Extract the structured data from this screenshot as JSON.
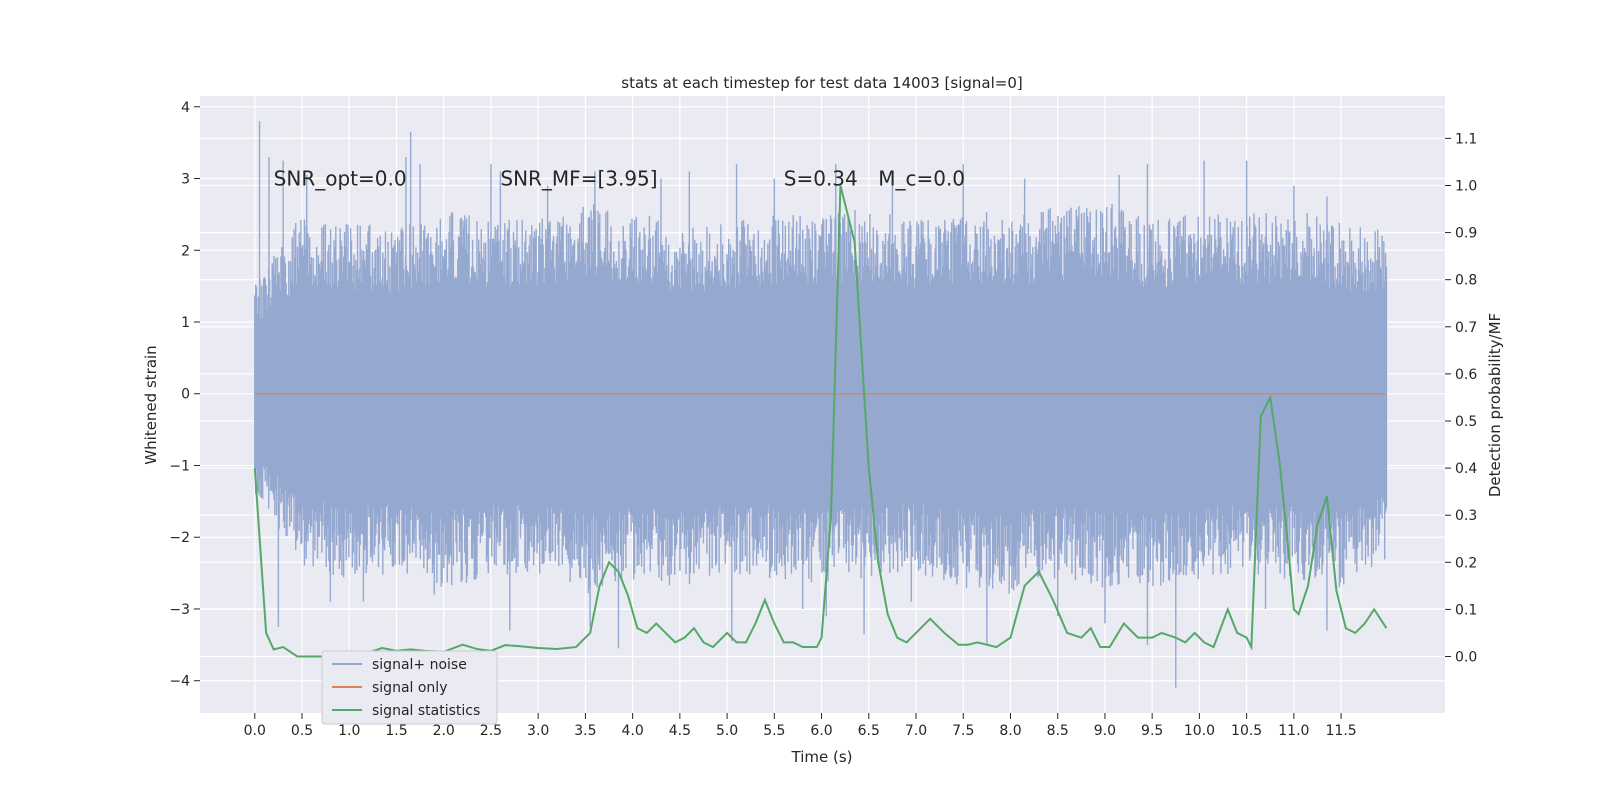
{
  "chart_data": {
    "type": "line",
    "title": "stats at each timestep for test data 14003 [signal=0]",
    "xlabel": "Time (s)",
    "ylabel": "Whitened strain",
    "y2label": "Detection probability/MF",
    "xlim": [
      -0.58,
      12.6
    ],
    "ylim": [
      -4.45,
      4.15
    ],
    "y2lim": [
      -0.12,
      1.19
    ],
    "xticks": [
      0.0,
      0.5,
      1.0,
      1.5,
      2.0,
      2.5,
      3.0,
      3.5,
      4.0,
      4.5,
      5.0,
      5.5,
      6.0,
      6.5,
      7.0,
      7.5,
      8.0,
      8.5,
      9.0,
      9.5,
      10.0,
      10.5,
      11.0,
      11.5
    ],
    "xtick_labels": [
      "0.0",
      "0.5",
      "1.0",
      "1.5",
      "2.0",
      "2.5",
      "3.0",
      "3.5",
      "4.0",
      "4.5",
      "5.0",
      "5.5",
      "6.0",
      "6.5",
      "7.0",
      "7.5",
      "8.0",
      "8.5",
      "9.0",
      "9.5",
      "10.0",
      "10.5",
      "11.0",
      "11.5"
    ],
    "yticks": [
      -4,
      -3,
      -2,
      -1,
      0,
      1,
      2,
      3,
      4
    ],
    "ytick_labels": [
      "−4",
      "−3",
      "−2",
      "−1",
      "0",
      "1",
      "2",
      "3",
      "4"
    ],
    "y2ticks": [
      0.0,
      0.1,
      0.2,
      0.3,
      0.4,
      0.5,
      0.6,
      0.7,
      0.8,
      0.9,
      1.0,
      1.1
    ],
    "y2tick_labels": [
      "0.0",
      "0.1",
      "0.2",
      "0.3",
      "0.4",
      "0.5",
      "0.6",
      "0.7",
      "0.8",
      "0.9",
      "1.0",
      "1.1"
    ],
    "grid": true,
    "legend_position": "lower-left",
    "annotations": [
      {
        "text": "SNR_opt=0.0",
        "x": 0.2,
        "y": 3.0
      },
      {
        "text": "SNR_MF=[3.95]",
        "x": 2.6,
        "y": 3.0
      },
      {
        "text": "S=0.34",
        "x": 5.6,
        "y": 3.0
      },
      {
        "text": "M_c=0.0",
        "x": 6.6,
        "y": 3.0
      }
    ],
    "series": [
      {
        "name": "signal+ noise",
        "color": "#95a8d0",
        "axis": "left",
        "x_range": [
          0.0,
          11.98
        ],
        "envelope_top": [
          1.6,
          2.5,
          2.4,
          2.3,
          2.6,
          2.4,
          2.5,
          2.7,
          2.6,
          2.3,
          2.4,
          2.5,
          2.5,
          2.6,
          2.4,
          2.6,
          2.5,
          2.6,
          2.7,
          2.4,
          2.6,
          2.5,
          2.6,
          2.4,
          2.3
        ],
        "envelope_bottom": [
          -1.4,
          -2.4,
          -2.6,
          -2.5,
          -2.7,
          -2.6,
          -2.5,
          -2.8,
          -2.6,
          -2.7,
          -2.5,
          -2.6,
          -2.7,
          -2.6,
          -2.5,
          -2.7,
          -2.8,
          -2.6,
          -2.7,
          -2.7,
          -2.6,
          -2.5,
          -2.6,
          -2.7,
          -2.3
        ],
        "spikes_up": [
          [
            0.05,
            3.8
          ],
          [
            0.15,
            3.3
          ],
          [
            0.3,
            3.25
          ],
          [
            0.55,
            3.05
          ],
          [
            1.6,
            3.3
          ],
          [
            1.65,
            3.65
          ],
          [
            1.75,
            3.2
          ],
          [
            2.5,
            3.2
          ],
          [
            2.6,
            3.1
          ],
          [
            3.1,
            2.9
          ],
          [
            3.6,
            3.1
          ],
          [
            4.3,
            3.0
          ],
          [
            4.6,
            3.1
          ],
          [
            5.1,
            3.2
          ],
          [
            5.5,
            3.0
          ],
          [
            6.15,
            3.2
          ],
          [
            6.75,
            3.0
          ],
          [
            7.5,
            3.2
          ],
          [
            8.15,
            3.0
          ],
          [
            9.15,
            3.05
          ],
          [
            9.45,
            3.2
          ],
          [
            10.05,
            3.25
          ],
          [
            10.5,
            3.25
          ],
          [
            11.0,
            2.9
          ],
          [
            11.35,
            2.75
          ]
        ],
        "spikes_down": [
          [
            0.25,
            -3.25
          ],
          [
            0.8,
            -2.9
          ],
          [
            1.15,
            -2.9
          ],
          [
            1.9,
            -2.8
          ],
          [
            2.7,
            -3.3
          ],
          [
            3.55,
            -3.25
          ],
          [
            3.85,
            -3.55
          ],
          [
            5.05,
            -3.45
          ],
          [
            5.8,
            -3.0
          ],
          [
            6.05,
            -3.1
          ],
          [
            6.45,
            -3.35
          ],
          [
            6.95,
            -2.9
          ],
          [
            7.75,
            -3.5
          ],
          [
            8.5,
            -3.1
          ],
          [
            9.0,
            -3.2
          ],
          [
            9.45,
            -3.5
          ],
          [
            9.75,
            -4.1
          ],
          [
            10.7,
            -3.0
          ],
          [
            11.35,
            -3.3
          ]
        ]
      },
      {
        "name": "signal only",
        "color": "#dd8452",
        "axis": "left",
        "x": [
          0.0,
          11.98
        ],
        "y": [
          0.0,
          0.0
        ]
      },
      {
        "name": "signal statistics",
        "color": "#55a868",
        "axis": "right",
        "x": [
          0.0,
          0.12,
          0.2,
          0.3,
          0.45,
          0.6,
          0.75,
          0.9,
          1.0,
          1.2,
          1.35,
          1.5,
          1.65,
          1.8,
          2.0,
          2.2,
          2.35,
          2.5,
          2.65,
          2.8,
          3.0,
          3.2,
          3.4,
          3.55,
          3.65,
          3.75,
          3.85,
          3.95,
          4.05,
          4.15,
          4.25,
          4.35,
          4.45,
          4.55,
          4.65,
          4.75,
          4.85,
          5.0,
          5.1,
          5.2,
          5.3,
          5.4,
          5.5,
          5.6,
          5.7,
          5.8,
          5.95,
          6.0,
          6.1,
          6.2,
          6.35,
          6.5,
          6.6,
          6.7,
          6.8,
          6.9,
          7.0,
          7.15,
          7.3,
          7.45,
          7.55,
          7.65,
          7.75,
          7.85,
          8.0,
          8.15,
          8.3,
          8.45,
          8.6,
          8.75,
          8.85,
          8.95,
          9.05,
          9.2,
          9.35,
          9.5,
          9.6,
          9.75,
          9.85,
          9.95,
          10.05,
          10.15,
          10.3,
          10.4,
          10.5,
          10.55,
          10.65,
          10.75,
          10.85,
          10.95,
          11.0,
          11.05,
          11.15,
          11.25,
          11.35,
          11.45,
          11.55,
          11.65,
          11.75,
          11.85,
          11.98
        ],
        "y": [
          0.4,
          0.05,
          0.015,
          0.02,
          0.0,
          0.0,
          0.0,
          0.002,
          0.005,
          0.008,
          0.018,
          0.012,
          0.015,
          0.012,
          0.01,
          0.025,
          0.016,
          0.012,
          0.024,
          0.022,
          0.018,
          0.016,
          0.02,
          0.05,
          0.15,
          0.2,
          0.18,
          0.13,
          0.06,
          0.05,
          0.07,
          0.05,
          0.03,
          0.04,
          0.06,
          0.03,
          0.02,
          0.05,
          0.03,
          0.03,
          0.07,
          0.12,
          0.07,
          0.03,
          0.03,
          0.02,
          0.02,
          0.04,
          0.3,
          1.0,
          0.88,
          0.4,
          0.2,
          0.09,
          0.04,
          0.03,
          0.05,
          0.08,
          0.05,
          0.025,
          0.025,
          0.03,
          0.025,
          0.02,
          0.04,
          0.15,
          0.18,
          0.12,
          0.05,
          0.04,
          0.06,
          0.02,
          0.02,
          0.07,
          0.04,
          0.04,
          0.05,
          0.04,
          0.03,
          0.05,
          0.03,
          0.02,
          0.1,
          0.05,
          0.04,
          0.02,
          0.51,
          0.55,
          0.41,
          0.21,
          0.1,
          0.09,
          0.15,
          0.28,
          0.34,
          0.14,
          0.06,
          0.05,
          0.07,
          0.1,
          0.06
        ]
      }
    ]
  }
}
